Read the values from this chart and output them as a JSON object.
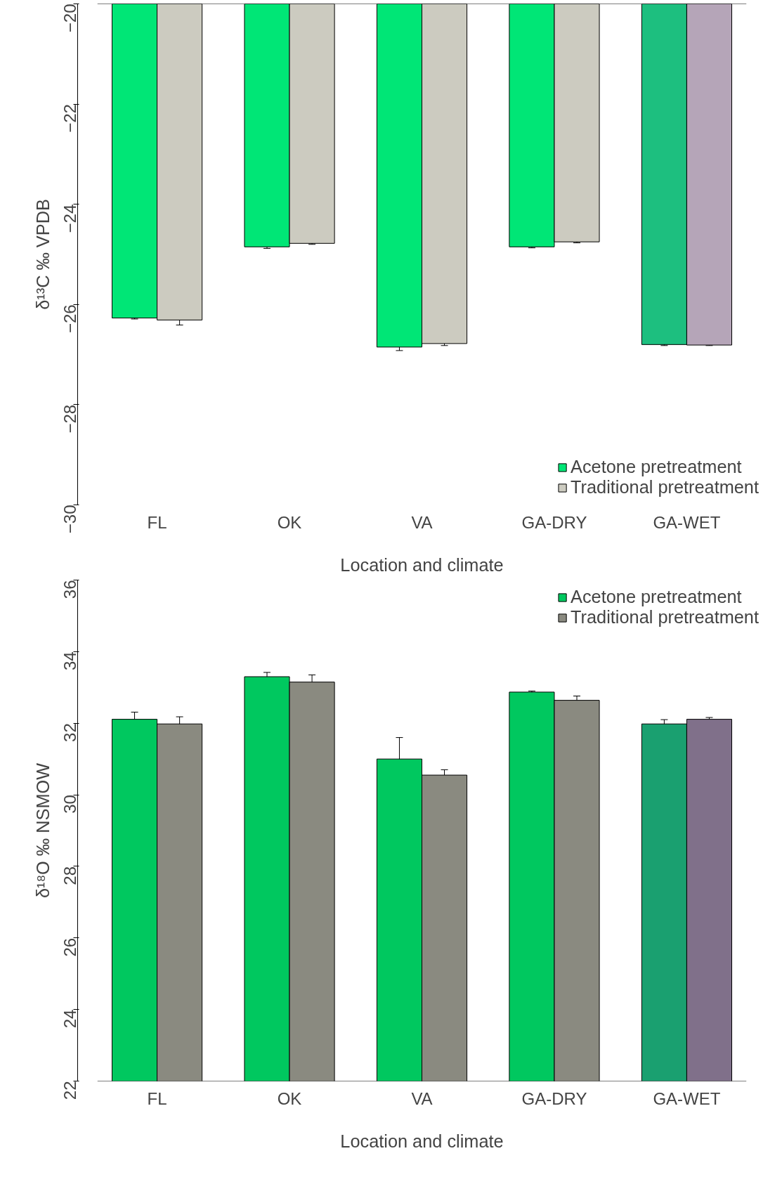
{
  "chart_data": [
    {
      "type": "bar",
      "xlabel": "Location and climate",
      "ylabel": "δ¹³C ‰ VPDB",
      "categories": [
        "FL",
        "OK",
        "VA",
        "GA-DRY",
        "GA-WET"
      ],
      "ylim": [
        -30,
        -20
      ],
      "yticks": [
        -30,
        -28,
        -26,
        -24,
        -22,
        -20
      ],
      "legend": "bottom right",
      "grid": false,
      "series": [
        {
          "name": "Acetone pretreatment",
          "colors": [
            "#00e676",
            "#00e676",
            "#00e676",
            "#00e676",
            "#1dbf7f"
          ],
          "values": [
            -26.27,
            -24.85,
            -26.85,
            -24.85,
            -26.8
          ],
          "errors": [
            0.02,
            0.03,
            0.07,
            0.02,
            0.02
          ]
        },
        {
          "name": "Traditional pretreatment",
          "colors": [
            "#cccbc0",
            "#cccbc0",
            "#cccbc0",
            "#cccbc0",
            "#b5a5b8"
          ],
          "values": [
            -26.31,
            -24.78,
            -26.78,
            -24.75,
            -26.81
          ],
          "errors": [
            0.1,
            0.02,
            0.04,
            0.02,
            0.01
          ]
        }
      ]
    },
    {
      "type": "bar",
      "xlabel": "Location and climate",
      "ylabel": "δ¹⁸O ‰ NSMOW",
      "categories": [
        "FL",
        "OK",
        "VA",
        "GA-DRY",
        "GA-WET"
      ],
      "ylim": [
        22,
        36
      ],
      "yticks": [
        22,
        24,
        26,
        28,
        30,
        32,
        34,
        36
      ],
      "legend": "top right",
      "grid": false,
      "series": [
        {
          "name": "Acetone pretreatment",
          "colors": [
            "#00c85f",
            "#00c85f",
            "#00c85f",
            "#00c85f",
            "#1aa070"
          ],
          "values": [
            32.11,
            33.3,
            31.0,
            32.87,
            31.98
          ],
          "errors": [
            0.2,
            0.12,
            0.6,
            0.03,
            0.12
          ]
        },
        {
          "name": "Traditional pretreatment",
          "colors": [
            "#8a8a80",
            "#8a8a80",
            "#8a8a80",
            "#8a8a80",
            "#80708a"
          ],
          "values": [
            31.98,
            33.15,
            30.55,
            32.64,
            32.11
          ],
          "errors": [
            0.2,
            0.2,
            0.15,
            0.12,
            0.05
          ]
        }
      ]
    }
  ]
}
